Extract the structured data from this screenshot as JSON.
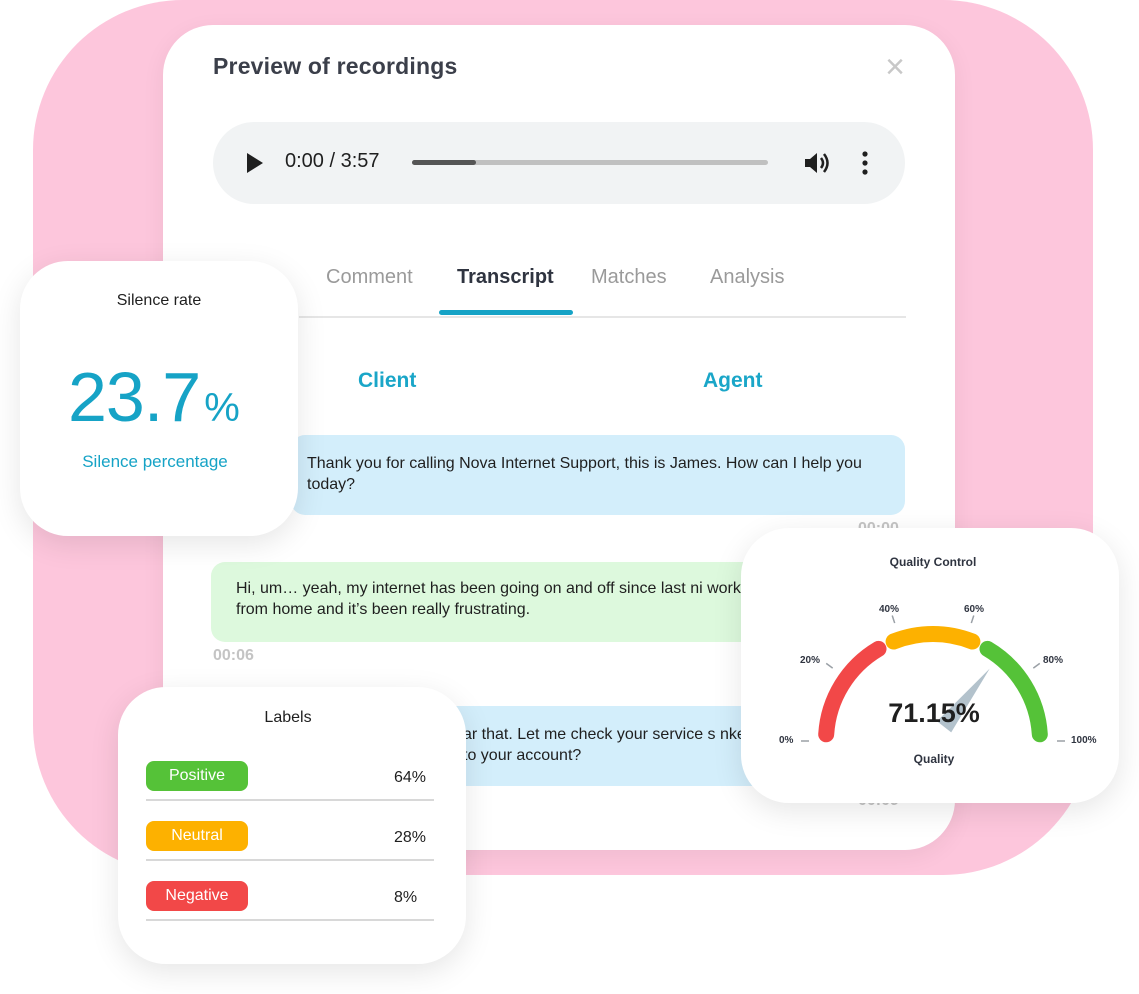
{
  "panel": {
    "title": "Preview of recordings",
    "close_icon": "close-icon"
  },
  "player": {
    "time": "0:00 / 3:57",
    "progress_fraction": 0.18,
    "icons": [
      "play-icon",
      "volume-icon",
      "more-vertical-icon"
    ]
  },
  "tabs": [
    {
      "label": "Comment",
      "active": false
    },
    {
      "label": "Transcript",
      "active": true
    },
    {
      "label": "Matches",
      "active": false
    },
    {
      "label": "Analysis",
      "active": false
    }
  ],
  "transcript": {
    "client_header": "Client",
    "agent_header": "Agent",
    "messages": [
      {
        "text": "Thank you for calling Nova Internet Support, this is James. How can I help you today?",
        "time": "00:00"
      },
      {
        "text": "Hi, um… yeah, my internet has been going on and off since last ni work from home and it’s been really frustrating.",
        "time": "00:06"
      },
      {
        "text": "ar that. Let me check your service s nked to your account?",
        "time": "00:09"
      }
    ]
  },
  "silence": {
    "title": "Silence rate",
    "value": "23.7",
    "unit": "%",
    "subtitle": "Silence percentage"
  },
  "labels": {
    "title": "Labels",
    "items": [
      {
        "name": "Positive",
        "percent": "64%",
        "color": "#55c238"
      },
      {
        "name": "Neutral",
        "percent": "28%",
        "color": "#fdb100"
      },
      {
        "name": "Negative",
        "percent": "8%",
        "color": "#f24848"
      }
    ]
  },
  "quality": {
    "title": "Quality Control",
    "value": "71.15%",
    "label": "Quality",
    "value_number": 71.15,
    "ticks": [
      "0%",
      "20%",
      "40%",
      "60%",
      "80%",
      "100%"
    ],
    "colors": {
      "low": "#f24848",
      "mid": "#fdb100",
      "high": "#55c238",
      "needle": "#b3c2cc"
    }
  }
}
